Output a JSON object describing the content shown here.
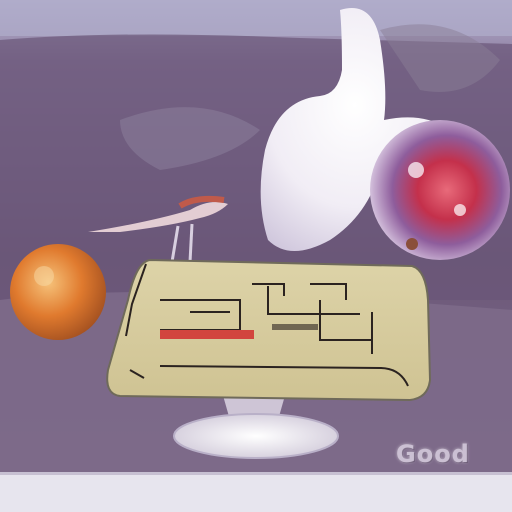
{
  "image": {
    "caption_text": "Good",
    "palette": {
      "sky": "#a9a5c6",
      "wall": "#6f5a7a",
      "floor": "#8a7796",
      "tray": "#d9cfa0",
      "swan": "#f4f1f6",
      "nebula": "#c7364f",
      "sphere_orange": "#e07a2e",
      "glass_stand": "#e9e6ee"
    }
  }
}
